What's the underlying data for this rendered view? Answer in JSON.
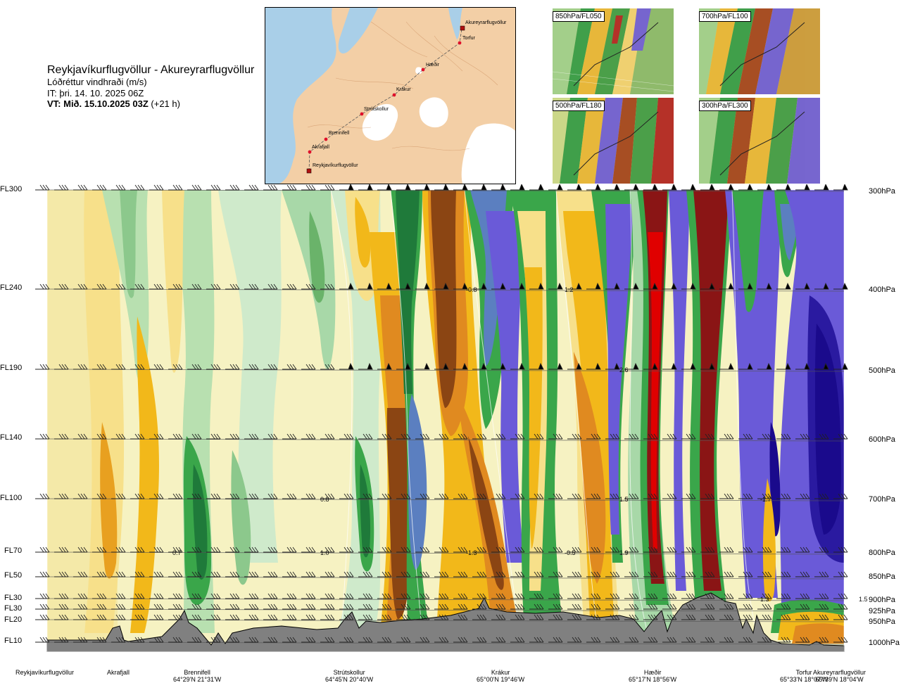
{
  "header": {
    "route": "Reykjavíkurflugvöllur - Akureyrarflugvöllur",
    "variable": "Lóðréttur vindhraði (m/s)",
    "init": "IT: þri. 14. 10. 2025 06Z",
    "valid_bold": "VT: Mið. 15.10.2025 03Z",
    "valid_rest": " (+21 h)"
  },
  "map": {
    "stations": [
      "Akureyrarflugvöllur",
      "Torfur",
      "Hæðir",
      "Krákur",
      "Strútskollur",
      "Brennifell",
      "Akrafjall",
      "Reykjavíkurflugvöllur"
    ],
    "colors": {
      "land": "#f2c9a0",
      "sea": "#a9cfe8",
      "glacier": "#ffffff",
      "route": "#555555",
      "station": "#e0102a"
    }
  },
  "minimaps": [
    {
      "label": "850hPa/FL050"
    },
    {
      "label": "700hPa/FL100"
    },
    {
      "label": "500hPa/FL180"
    },
    {
      "label": "300hPa/FL300"
    }
  ],
  "flight_levels": [
    "FL300",
    "FL240",
    "FL190",
    "FL140",
    "FL100",
    "FL70",
    "FL50",
    "FL30",
    "FL30",
    "FL20",
    "FL10"
  ],
  "pressure_levels": [
    "300hPa",
    "400hPa",
    "500hPa",
    "600hPa",
    "700hPa",
    "800hPa",
    "850hPa",
    "900hPa",
    "925hPa",
    "950hPa",
    "1000hPa"
  ],
  "stations": [
    {
      "name": "Reykjavíkurflugvöllur",
      "coord": ""
    },
    {
      "name": "Akrafjall",
      "coord": ""
    },
    {
      "name": "Brennifell",
      "coord": "64°29'N 21°31'W"
    },
    {
      "name": "Strútskollur",
      "coord": "64°45'N 20°40'W"
    },
    {
      "name": "Krákur",
      "coord": "65°00'N 19°46'W"
    },
    {
      "name": "Hæðir",
      "coord": "65°17'N 18°56'W"
    },
    {
      "name": "Torfur",
      "coord": "65°33'N 18°07'W"
    },
    {
      "name": "Akureyrarflugvöllur",
      "coord": "65°39'N 18°04'W"
    }
  ],
  "chart_data": {
    "type": "heatmap",
    "title": "Lóðréttur vindhraði (m/s)",
    "xlabel": "",
    "ylabel": "",
    "x_categories": [
      "Reykjavíkurflugvöllur",
      "Akrafjall",
      "Brennifell",
      "Strútskollur",
      "Krákur",
      "Hæðir",
      "Torfur",
      "Akureyrarflugvöllur"
    ],
    "y_levels_hPa": [
      300,
      400,
      500,
      600,
      700,
      800,
      850,
      900,
      925,
      950,
      1000
    ],
    "annotations": [
      {
        "text": "-0.8",
        "near": "Krákur",
        "level_hPa": 400
      },
      {
        "text": "1.2",
        "near": "Krákur",
        "level_hPa": 400
      },
      {
        "text": "2.6",
        "near": "Hæðir",
        "level_hPa": 500
      },
      {
        "text": "0.8",
        "near": "Strútskollur",
        "level_hPa": 700
      },
      {
        "text": "1.5",
        "near": "Hæðir",
        "level_hPa": 700
      },
      {
        "text": "-1.7",
        "near": "Torfur",
        "level_hPa": 700
      },
      {
        "text": "0.7",
        "near": "Brennifell",
        "level_hPa": 800
      },
      {
        "text": "1.0",
        "near": "Strútskollur",
        "level_hPa": 800
      },
      {
        "text": "-1.3",
        "near": "Krákur",
        "level_hPa": 800
      },
      {
        "text": "-0.5",
        "near": "Krákur",
        "level_hPa": 800
      },
      {
        "text": "1.9",
        "near": "Hæðir",
        "level_hPa": 800
      },
      {
        "text": "1.3",
        "near": "Torfur",
        "level_hPa": 900
      },
      {
        "text": "1.5",
        "near": "Torfur",
        "level_hPa": 900
      }
    ],
    "colors": {
      "strong_down_dark": "#1a0a8c",
      "down": "#6a5ad8",
      "down_light": "#5b7fc0",
      "weak_down_dark": "#1f7a3a",
      "weak_down": "#3aa64a",
      "weak_down_light": "#a8d8a8",
      "near_zero": "#f6f2c2",
      "weak_up": "#f7e08a",
      "up": "#f2b81a",
      "up_mid": "#e08a20",
      "up_strong": "#8b4513",
      "up_very_strong": "#8a1515",
      "up_extreme": "#e00000",
      "terrain": "#808080"
    }
  }
}
